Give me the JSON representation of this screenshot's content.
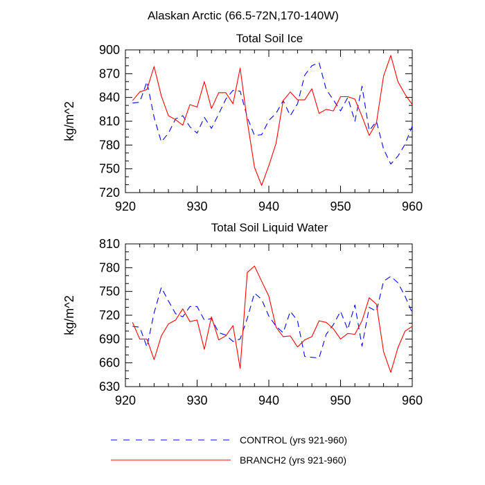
{
  "figure": {
    "title": "Alaskan Arctic (66.5-72N,170-140W)"
  },
  "colors": {
    "control": "#0000ff",
    "branch": "#ff0000",
    "axis": "#000000"
  },
  "legend": {
    "placement": "bottom-center",
    "items": [
      {
        "label": "CONTROL (yrs 921-960)",
        "style": "dashed",
        "color": "#0000ff"
      },
      {
        "label": "BRANCH2 (yrs 921-960)",
        "style": "solid",
        "color": "#ff0000"
      }
    ]
  },
  "chart_data": [
    {
      "type": "line",
      "title": "Total Soil Ice",
      "xlabel": "",
      "ylabel": "kg/m^2",
      "xlim": [
        920,
        960
      ],
      "ylim": [
        720,
        900
      ],
      "xticks": [
        920,
        930,
        940,
        950,
        960
      ],
      "yticks": [
        720,
        750,
        780,
        810,
        840,
        870,
        900
      ],
      "x": [
        921,
        922,
        923,
        924,
        925,
        926,
        927,
        928,
        929,
        930,
        931,
        932,
        933,
        934,
        935,
        936,
        937,
        938,
        939,
        940,
        941,
        942,
        943,
        944,
        945,
        946,
        947,
        948,
        949,
        950,
        951,
        952,
        953,
        954,
        955,
        956,
        957,
        958,
        959,
        960
      ],
      "series": [
        {
          "name": "CONTROL (yrs 921-960)",
          "style": "dashed",
          "color": "#0000ff",
          "values": [
            833,
            834,
            860,
            815,
            784,
            795,
            813,
            817,
            803,
            795,
            815,
            801,
            819,
            838,
            849,
            848,
            815,
            792,
            793,
            811,
            820,
            836,
            817,
            832,
            868,
            880,
            884,
            850,
            837,
            823,
            840,
            810,
            854,
            798,
            810,
            775,
            756,
            766,
            781,
            804
          ]
        },
        {
          "name": "BRANCH2 (yrs 921-960)",
          "style": "solid",
          "color": "#ff0000",
          "values": [
            836,
            847,
            850,
            879,
            842,
            817,
            812,
            805,
            831,
            828,
            860,
            826,
            846,
            846,
            832,
            877,
            810,
            752,
            729,
            754,
            782,
            836,
            847,
            837,
            837,
            851,
            820,
            825,
            823,
            841,
            841,
            838,
            816,
            792,
            808,
            867,
            893,
            860,
            844,
            831
          ]
        }
      ]
    },
    {
      "type": "line",
      "title": "Total Soil Liquid Water",
      "xlabel": "",
      "ylabel": "kg/m^2",
      "xlim": [
        920,
        960
      ],
      "ylim": [
        630,
        810
      ],
      "xticks": [
        920,
        930,
        940,
        950,
        960
      ],
      "yticks": [
        630,
        660,
        690,
        720,
        750,
        780,
        810
      ],
      "x": [
        921,
        922,
        923,
        924,
        925,
        926,
        927,
        928,
        929,
        930,
        931,
        932,
        933,
        934,
        935,
        936,
        937,
        938,
        939,
        940,
        941,
        942,
        943,
        944,
        945,
        946,
        947,
        948,
        949,
        950,
        951,
        952,
        953,
        954,
        955,
        956,
        957,
        958,
        959,
        960
      ],
      "series": [
        {
          "name": "CONTROL (yrs 921-960)",
          "style": "dashed",
          "color": "#0000ff",
          "values": [
            706,
            705,
            680,
            723,
            755,
            738,
            722,
            718,
            731,
            731,
            714,
            716,
            698,
            695,
            687,
            690,
            716,
            748,
            740,
            719,
            706,
            698,
            725,
            713,
            668,
            667,
            666,
            696,
            708,
            725,
            702,
            733,
            681,
            730,
            725,
            763,
            769,
            761,
            744,
            723
          ]
        },
        {
          "name": "BRANCH2 (yrs 921-960)",
          "style": "solid",
          "color": "#ff0000",
          "values": [
            711,
            690,
            690,
            664,
            694,
            709,
            714,
            728,
            712,
            714,
            677,
            718,
            689,
            694,
            707,
            653,
            774,
            782,
            763,
            744,
            705,
            693,
            694,
            680,
            689,
            693,
            713,
            711,
            703,
            690,
            697,
            696,
            713,
            742,
            734,
            674,
            648,
            679,
            700,
            706
          ]
        }
      ]
    }
  ]
}
